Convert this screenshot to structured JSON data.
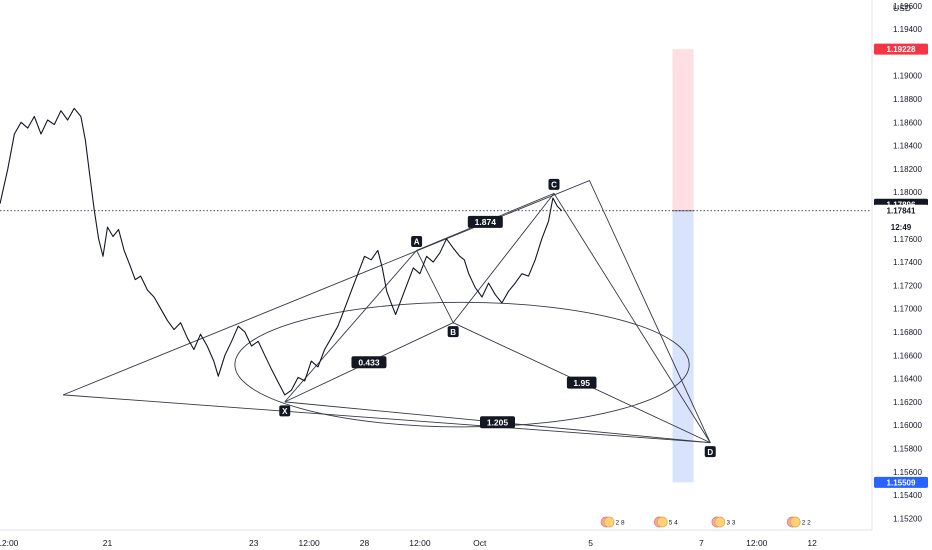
{
  "chart_data": {
    "type": "line",
    "instrument": {
      "currency": "USD"
    },
    "price_axis": {
      "ticks": [
        "1.19600",
        "1.19400",
        "1.19000",
        "1.18800",
        "1.18600",
        "1.18400",
        "1.18200",
        "1.18000",
        "1.17600",
        "1.17400",
        "1.17200",
        "1.17000",
        "1.16800",
        "1.16600",
        "1.16400",
        "1.16200",
        "1.16000",
        "1.15800",
        "1.15600",
        "1.15400",
        "1.15200"
      ],
      "ylim": [
        1.151,
        1.1965
      ]
    },
    "time_axis": {
      "ticks": [
        {
          "label": "12:00",
          "t": -0.5
        },
        {
          "label": "21",
          "t": 0.4
        },
        {
          "label": "23",
          "t": 1.72
        },
        {
          "label": "12:00",
          "t": 2.22
        },
        {
          "label": "28",
          "t": 2.72
        },
        {
          "label": "12:00",
          "t": 3.22
        },
        {
          "label": "Oct",
          "t": 3.76
        },
        {
          "label": "5",
          "t": 4.76
        },
        {
          "label": "7",
          "t": 5.76
        },
        {
          "label": "12:00",
          "t": 6.26
        },
        {
          "label": "12",
          "t": 6.76
        }
      ],
      "xlim": [
        -0.57,
        7.3
      ]
    },
    "price_badges": [
      {
        "label": "1.19228",
        "value": 1.19228,
        "color": "#f23645",
        "text_color": "#ffffff"
      },
      {
        "label": "1.17896",
        "value": 1.17896,
        "color": "#131722",
        "text_color": "#ffffff"
      },
      {
        "label": "1.17841",
        "value": 1.17841,
        "color": "#ffffff",
        "text_color": "#131722"
      },
      {
        "label": "12:49",
        "value": 1.177,
        "color": "#ffffff",
        "text_color": "#131722"
      },
      {
        "label": "1.15509",
        "value": 1.15509,
        "color": "#2962ff",
        "text_color": "#ffffff"
      }
    ],
    "current_price": 1.17841,
    "price_series": {
      "name": "",
      "color": "#131722",
      "points": [
        [
          -0.57,
          1.179
        ],
        [
          -0.5,
          1.182
        ],
        [
          -0.44,
          1.185
        ],
        [
          -0.38,
          1.186
        ],
        [
          -0.32,
          1.1855
        ],
        [
          -0.26,
          1.1865
        ],
        [
          -0.2,
          1.185
        ],
        [
          -0.14,
          1.1862
        ],
        [
          -0.08,
          1.1858
        ],
        [
          -0.02,
          1.187
        ],
        [
          0.04,
          1.1862
        ],
        [
          0.1,
          1.1872
        ],
        [
          0.16,
          1.1865
        ],
        [
          0.2,
          1.1845
        ],
        [
          0.24,
          1.1815
        ],
        [
          0.28,
          1.1785
        ],
        [
          0.32,
          1.176
        ],
        [
          0.36,
          1.1745
        ],
        [
          0.4,
          1.177
        ],
        [
          0.45,
          1.1762
        ],
        [
          0.5,
          1.1768
        ],
        [
          0.55,
          1.175
        ],
        [
          0.6,
          1.1738
        ],
        [
          0.65,
          1.1725
        ],
        [
          0.7,
          1.1728
        ],
        [
          0.76,
          1.1716
        ],
        [
          0.82,
          1.171
        ],
        [
          0.88,
          1.17
        ],
        [
          0.94,
          1.169
        ],
        [
          1.0,
          1.1682
        ],
        [
          1.06,
          1.1688
        ],
        [
          1.12,
          1.1675
        ],
        [
          1.18,
          1.1665
        ],
        [
          1.24,
          1.1678
        ],
        [
          1.3,
          1.1668
        ],
        [
          1.36,
          1.1655
        ],
        [
          1.4,
          1.1642
        ],
        [
          1.46,
          1.166
        ],
        [
          1.52,
          1.1672
        ],
        [
          1.58,
          1.1685
        ],
        [
          1.64,
          1.168
        ],
        [
          1.7,
          1.1668
        ],
        [
          1.76,
          1.1672
        ],
        [
          1.82,
          1.166
        ],
        [
          1.88,
          1.1648
        ],
        [
          1.94,
          1.1637
        ],
        [
          2.0,
          1.1626
        ],
        [
          2.06,
          1.163
        ],
        [
          2.12,
          1.1641
        ],
        [
          2.18,
          1.1638
        ],
        [
          2.24,
          1.1655
        ],
        [
          2.3,
          1.165
        ],
        [
          2.36,
          1.1665
        ],
        [
          2.42,
          1.1675
        ],
        [
          2.48,
          1.1685
        ],
        [
          2.54,
          1.17
        ],
        [
          2.6,
          1.1715
        ],
        [
          2.66,
          1.173
        ],
        [
          2.72,
          1.1745
        ],
        [
          2.78,
          1.1742
        ],
        [
          2.84,
          1.175
        ],
        [
          2.88,
          1.1735
        ],
        [
          2.92,
          1.1715
        ],
        [
          2.96,
          1.1705
        ],
        [
          3.0,
          1.1695
        ],
        [
          3.04,
          1.1705
        ],
        [
          3.1,
          1.172
        ],
        [
          3.16,
          1.1735
        ],
        [
          3.22,
          1.173
        ],
        [
          3.28,
          1.1745
        ],
        [
          3.34,
          1.174
        ],
        [
          3.4,
          1.1748
        ],
        [
          3.46,
          1.176
        ],
        [
          3.52,
          1.1752
        ],
        [
          3.58,
          1.1745
        ],
        [
          3.62,
          1.1742
        ],
        [
          3.66,
          1.173
        ],
        [
          3.72,
          1.1718
        ],
        [
          3.78,
          1.171
        ],
        [
          3.84,
          1.1722
        ],
        [
          3.9,
          1.1712
        ],
        [
          3.96,
          1.1705
        ],
        [
          4.02,
          1.1715
        ],
        [
          4.08,
          1.1722
        ],
        [
          4.14,
          1.173
        ],
        [
          4.2,
          1.1728
        ],
        [
          4.26,
          1.1742
        ],
        [
          4.32,
          1.176
        ],
        [
          4.38,
          1.1775
        ],
        [
          4.42,
          1.1795
        ],
        [
          4.46,
          1.1788
        ],
        [
          4.5,
          1.1784
        ]
      ]
    },
    "pattern": {
      "name": "",
      "points": [
        {
          "label": "X",
          "t": 2.0,
          "price": 1.162
        },
        {
          "label": "A",
          "t": 3.19,
          "price": 1.175
        },
        {
          "label": "B",
          "t": 3.52,
          "price": 1.1688
        },
        {
          "label": "C",
          "t": 4.43,
          "price": 1.1799
        },
        {
          "label": "D",
          "t": 5.84,
          "price": 1.1585
        }
      ],
      "ratios": [
        {
          "label": "0.433",
          "from": "X",
          "to": "B"
        },
        {
          "label": "1.874",
          "from": "A",
          "to": "C"
        },
        {
          "label": "1.95",
          "from": "B",
          "to": "D"
        },
        {
          "label": "1.205",
          "from": "X",
          "to": "D"
        }
      ]
    },
    "drawings": {
      "triangle": [
        {
          "t": 0.0,
          "price": 1.1626
        },
        {
          "t": 4.75,
          "price": 1.181
        },
        {
          "t": 5.84,
          "price": 1.1585
        }
      ],
      "ellipse": {
        "center_t": 3.6,
        "center_price": 1.1652,
        "radius_t": 2.05,
        "radius_price": 0.00535
      }
    },
    "risk_reward": {
      "t_start": 5.5,
      "t_end": 5.69,
      "entry": 1.17841,
      "target": 1.19228,
      "stop": 1.15509,
      "target_color": "#ffdfe1",
      "stop_color": "#d9e3fb"
    },
    "event_markers": [
      {
        "t": 4.9,
        "text": "2  8"
      },
      {
        "t": 5.38,
        "text": "5  4"
      },
      {
        "t": 5.9,
        "text": "3  3"
      },
      {
        "t": 6.58,
        "text": "2  2"
      }
    ],
    "grid": false,
    "legend": "none"
  }
}
